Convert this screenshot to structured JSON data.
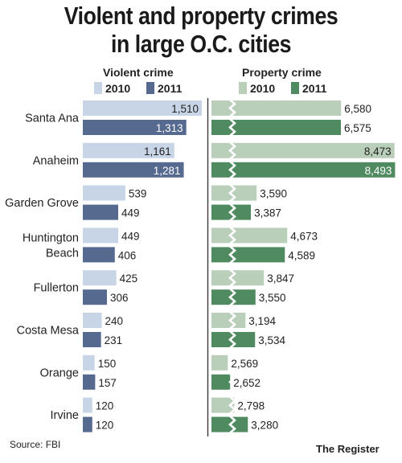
{
  "title": {
    "line1": "Violent and property crimes",
    "line2": "in large O.C. cities"
  },
  "colors": {
    "violent_2010": "#c8d5e6",
    "violent_2011": "#56698f",
    "property_2010": "#b9cfba",
    "property_2011": "#4f8a60",
    "divider": "#3a3a3a"
  },
  "legend": {
    "violent": {
      "title": "Violent crime",
      "year1": "2010",
      "year2": "2011"
    },
    "property": {
      "title": "Property crime",
      "year1": "2010",
      "year2": "2011"
    }
  },
  "source": "Source: FBI",
  "credit": "The Register",
  "chart_data": {
    "type": "bar",
    "orientation": "horizontal",
    "categories": [
      [
        "Santa Ana"
      ],
      [
        "Anaheim"
      ],
      [
        "Garden Grove"
      ],
      [
        "Huntington",
        "Beach"
      ],
      [
        "Fullerton"
      ],
      [
        "Costa Mesa"
      ],
      [
        "Orange"
      ],
      [
        "Irvine"
      ]
    ],
    "panels": [
      {
        "title": "Violent crime",
        "series": [
          {
            "name": "2010",
            "values": [
              1510,
              1161,
              539,
              449,
              425,
              240,
              150,
              120
            ],
            "labels": [
              "1,510",
              "1,161",
              "539",
              "449",
              "425",
              "240",
              "150",
              "120"
            ]
          },
          {
            "name": "2011",
            "values": [
              1313,
              1281,
              449,
              406,
              306,
              231,
              157,
              120
            ],
            "labels": [
              "1,313",
              "1,281",
              "449",
              "406",
              "306",
              "231",
              "157",
              "120"
            ]
          }
        ]
      },
      {
        "title": "Property crime",
        "axis_break": true,
        "series": [
          {
            "name": "2010",
            "values": [
              6580,
              8473,
              3590,
              4673,
              3847,
              3194,
              2569,
              2798
            ],
            "labels": [
              "6,580",
              "8,473",
              "3,590",
              "4,673",
              "3,847",
              "3,194",
              "2,569",
              "2,798"
            ]
          },
          {
            "name": "2011",
            "values": [
              6575,
              8493,
              3387,
              4589,
              3550,
              3534,
              2652,
              3280
            ],
            "labels": [
              "6,575",
              "8,493",
              "3,387",
              "4,589",
              "3,550",
              "3,534",
              "2,652",
              "3,280"
            ]
          }
        ]
      }
    ]
  }
}
